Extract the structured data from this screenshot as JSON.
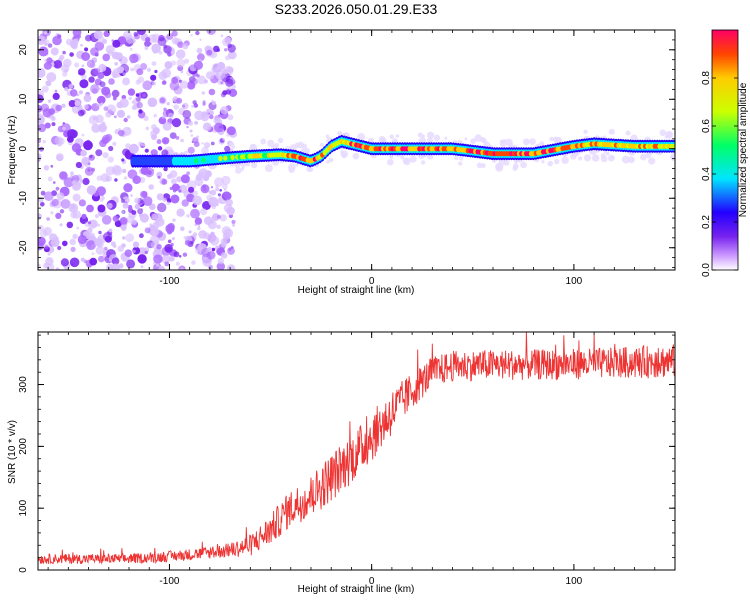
{
  "title": "S233.2026.050.01.29.E33",
  "colors": {
    "snr_line": "#ee3333",
    "colormap": [
      "#ffffff",
      "#cc99ff",
      "#7722ee",
      "#2200ff",
      "#00e5ff",
      "#00ff66",
      "#ccff00",
      "#ffcc00",
      "#ff2200"
    ]
  },
  "chart_data": [
    {
      "type": "heatmap",
      "title": "S233.2026.050.01.29.E33",
      "xlabel": "Height of straight line (km)",
      "ylabel": "Frequency (Hz)",
      "xlim": [
        -165,
        150
      ],
      "ylim": [
        -24.5,
        24
      ],
      "xticks": [
        -100,
        0,
        100
      ],
      "yticks": [
        -20,
        -10,
        0,
        10,
        20
      ],
      "xtick_labels": [
        "-100",
        "0",
        "100"
      ],
      "ytick_labels": [
        "-20",
        "-10",
        "0",
        "10",
        "20"
      ],
      "colorbar": {
        "label": "Normalized spectral amplitude",
        "range": [
          0.0,
          1.0
        ],
        "ticks": [
          0.0,
          0.2,
          0.4,
          0.6,
          0.8
        ],
        "tick_labels": [
          "0.0",
          "0.2",
          "0.4",
          "0.6",
          "0.8"
        ]
      },
      "ridge": {
        "x": [
          -115,
          -90,
          -70,
          -60,
          -45,
          -38,
          -30,
          -25,
          -20,
          -15,
          -10,
          0,
          20,
          40,
          60,
          80,
          100,
          110,
          130,
          150
        ],
        "freq": [
          -2.5,
          -2.5,
          -1.8,
          -1.5,
          -1.2,
          -1.5,
          -2.5,
          -1.5,
          0.5,
          1.5,
          1,
          0,
          0,
          0,
          -1,
          -1,
          0.5,
          1,
          0.5,
          0.5
        ],
        "amplitude": [
          0.2,
          0.35,
          0.4,
          0.6,
          0.7,
          0.75,
          0.8,
          0.7,
          0.65,
          0.6,
          0.8,
          0.85,
          0.85,
          0.8,
          0.9,
          0.85,
          0.8,
          0.7,
          0.75,
          0.6
        ]
      },
      "noise_region_x": [
        -165,
        -68
      ]
    },
    {
      "type": "line",
      "xlabel": "Height of straight line (km)",
      "ylabel": "SNR (10 * v/v)",
      "xlim": [
        -165,
        150
      ],
      "ylim": [
        0,
        385
      ],
      "xticks": [
        -100,
        0,
        100
      ],
      "yticks": [
        0,
        100,
        200,
        300
      ],
      "xtick_labels": [
        "-100",
        "0",
        "100"
      ],
      "ytick_labels": [
        "0",
        "100",
        "200",
        "300"
      ],
      "series": [
        {
          "name": "SNR",
          "x": [
            -165,
            -140,
            -120,
            -100,
            -80,
            -70,
            -60,
            -50,
            -40,
            -30,
            -20,
            -10,
            0,
            10,
            20,
            25,
            30,
            40,
            60,
            80,
            100,
            120,
            150
          ],
          "y": [
            18,
            18,
            18,
            22,
            28,
            32,
            40,
            65,
            100,
            120,
            150,
            180,
            215,
            255,
            290,
            305,
            320,
            330,
            332,
            332,
            333,
            335,
            338
          ],
          "noise_amplitude": [
            8,
            8,
            8,
            9,
            10,
            12,
            18,
            25,
            30,
            35,
            40,
            40,
            40,
            38,
            30,
            28,
            25,
            25,
            25,
            25,
            25,
            25,
            28
          ]
        }
      ]
    }
  ]
}
